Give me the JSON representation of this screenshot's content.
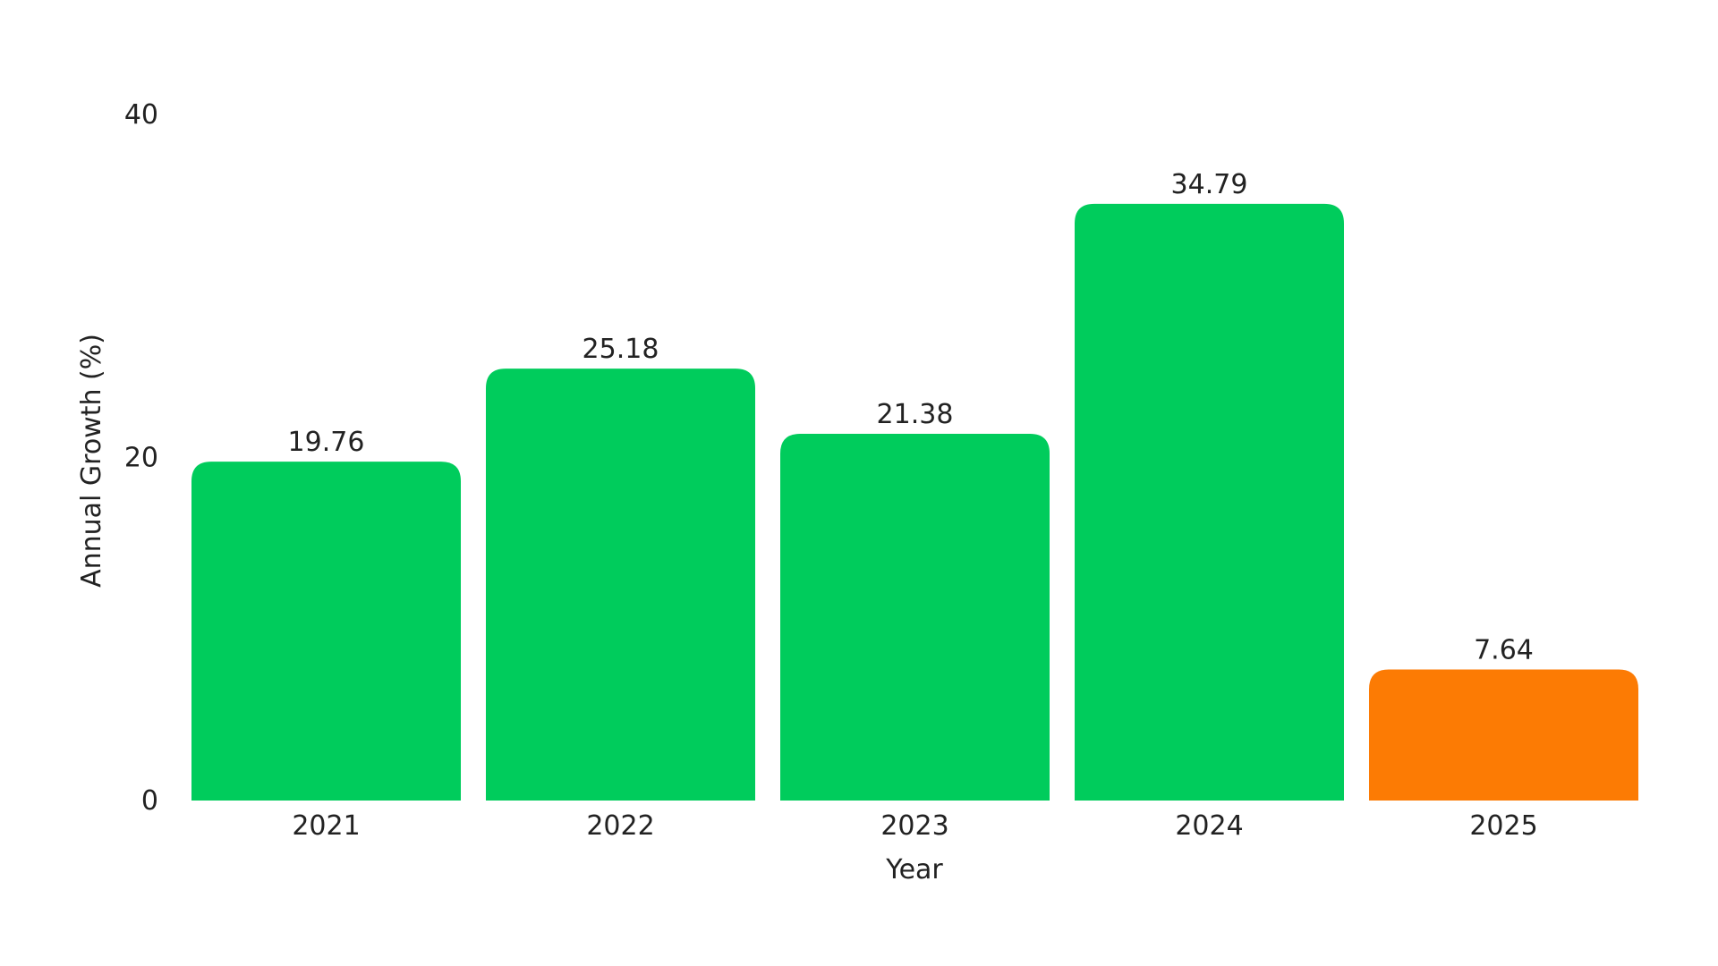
{
  "chart_data": {
    "type": "bar",
    "title": "",
    "xlabel": "Year",
    "ylabel": "Annual Growth (%)",
    "categories": [
      "2021",
      "2022",
      "2023",
      "2024",
      "2025"
    ],
    "values": [
      19.76,
      25.18,
      21.38,
      34.79,
      7.64
    ],
    "value_labels": [
      "19.76",
      "25.18",
      "21.38",
      "34.79",
      "7.64"
    ],
    "bar_colors": [
      "#00cc5c",
      "#00cc5c",
      "#00cc5c",
      "#00cc5c",
      "#fc7b04"
    ],
    "ylim": [
      0,
      40
    ],
    "yticks": [
      0,
      20,
      40
    ],
    "ytick_labels": [
      "0",
      "20",
      "40"
    ],
    "grid": false,
    "legend": "none"
  }
}
